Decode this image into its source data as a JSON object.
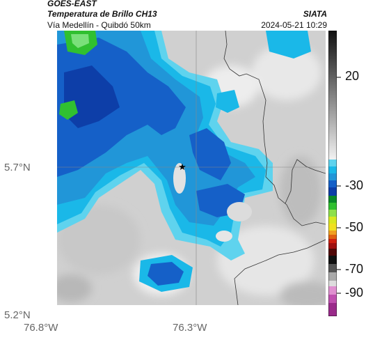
{
  "header": {
    "satellite": "GOES-EAST",
    "product": "Temperatura de Brillo CH13",
    "region": "Vía Medellín - Quibdó 50km",
    "org": "SIATA",
    "datetime": "2024-05-21 10:29"
  },
  "axes": {
    "y_ticks": [
      "5.7°N",
      "5.2°N"
    ],
    "x_ticks": [
      "76.8°W",
      "76.3°W"
    ]
  },
  "colorbar": {
    "labels": [
      "20",
      "-30",
      "-50",
      "-70",
      "-90"
    ]
  },
  "marker": {
    "symbol": "★"
  },
  "colors": {
    "cloud_cold": "#1560c8",
    "cloud_mid": "#2196d8",
    "cloud_warm": "#1ab8e8",
    "cloud_edge": "#5fd3ee",
    "convective": "#30c030",
    "clear": "#cfcfcf"
  }
}
